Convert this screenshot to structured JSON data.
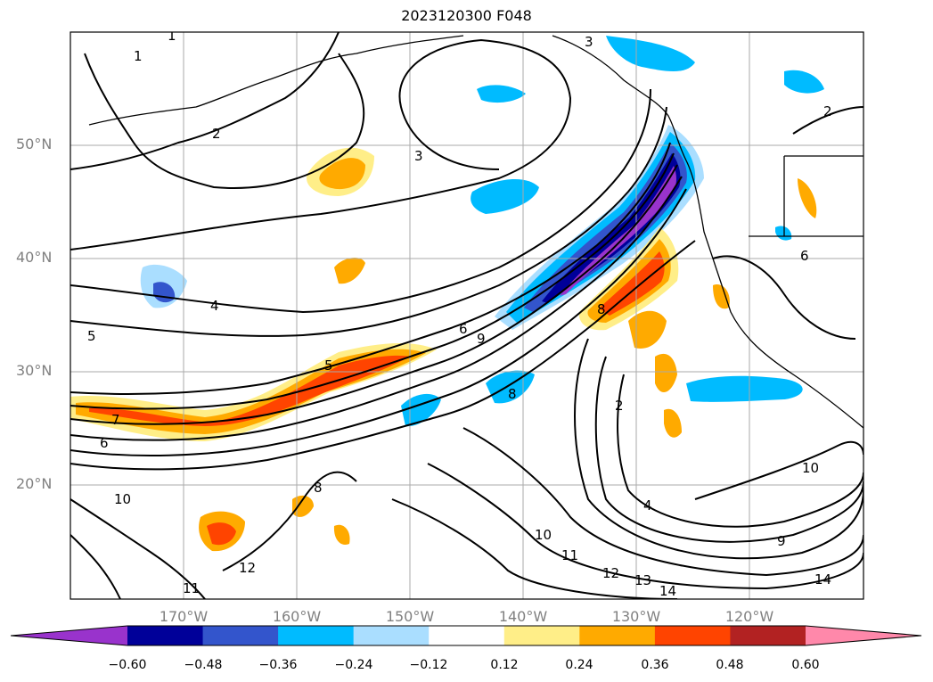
{
  "title": "2023120300 F048",
  "lat_labels": [
    "50°N",
    "40°N",
    "30°N",
    "20°N"
  ],
  "lon_labels": [
    "170°W",
    "160°W",
    "150°W",
    "140°W",
    "130°W",
    "120°W"
  ],
  "colorbar": {
    "labels": [
      "−0.60",
      "−0.48",
      "−0.36",
      "−0.24",
      "−0.12",
      "0.12",
      "0.24",
      "0.36",
      "0.48",
      "0.60"
    ],
    "colors": [
      "#9933cc",
      "#000099",
      "#3355cc",
      "#00bbff",
      "#aadeff",
      "#ffffff",
      "#ffee88",
      "#ffaa00",
      "#ff4400",
      "#b22222",
      "#ff88aa"
    ]
  },
  "contour_labels": [
    "1",
    "1",
    "2",
    "2",
    "3",
    "3",
    "4",
    "4",
    "5",
    "5",
    "6",
    "6",
    "7",
    "8",
    "8",
    "9",
    "10",
    "10",
    "11",
    "11",
    "12",
    "12",
    "13",
    "14",
    "14",
    "2",
    "6",
    "8",
    "9",
    "10"
  ]
}
